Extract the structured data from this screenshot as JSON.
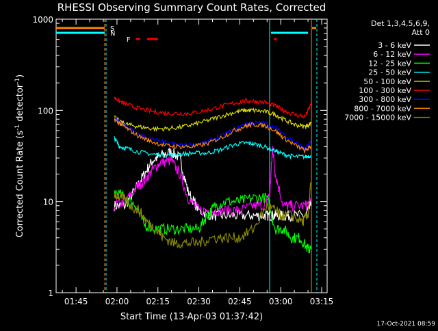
{
  "chart_data": {
    "type": "line",
    "title": "RHESSI Observing Summary Count Rates, Corrected",
    "xlabel": "Start Time (13-Apr-03 01:37:42)",
    "ylabel_main": "Corrected Count Rate (s",
    "ylabel_sup1": "-1",
    "ylabel_mid": " detector",
    "ylabel_sup2": "-1",
    "ylabel_end": ")",
    "yscale": "log",
    "ylim": [
      1,
      1000
    ],
    "xlim_minutes": [
      97.7,
      197.0
    ],
    "x_ticks": [
      {
        "label": "01:45",
        "minutes": 105
      },
      {
        "label": "02:00",
        "minutes": 120
      },
      {
        "label": "02:15",
        "minutes": 135
      },
      {
        "label": "02:30",
        "minutes": 150
      },
      {
        "label": "02:45",
        "minutes": 165
      },
      {
        "label": "03:00",
        "minutes": 180
      },
      {
        "label": "03:15",
        "minutes": 195
      }
    ],
    "y_ticks": [
      {
        "label": "1",
        "value": 1
      },
      {
        "label": "10",
        "value": 10
      },
      {
        "label": "100",
        "value": 100
      },
      {
        "label": "1000",
        "value": 1000
      }
    ],
    "legend_placement": "right",
    "legend_header": [
      "Det 1,3,4,5,6,9,",
      "Att 0"
    ],
    "series": [
      {
        "name": "3 - 6 keV",
        "color": "#ffffff",
        "x": [
          119,
          123,
          127,
          130,
          133,
          136,
          140,
          143,
          146,
          150,
          155,
          160,
          165,
          170,
          174,
          176,
          178,
          181,
          184,
          189,
          191
        ],
        "y": [
          9,
          9,
          14,
          20,
          28,
          32,
          35,
          30,
          13,
          8,
          7,
          7,
          7,
          7,
          7,
          7,
          7,
          7,
          7,
          7,
          9
        ]
      },
      {
        "name": "6 - 12 keV",
        "color": "#ff00ff",
        "x": [
          119,
          123,
          127,
          130,
          133,
          136,
          140,
          143,
          146,
          150,
          155,
          160,
          165,
          170,
          174,
          176,
          177,
          178,
          181,
          184,
          189,
          191
        ],
        "y": [
          9,
          10,
          14,
          17,
          22,
          27,
          28,
          20,
          11,
          8,
          8,
          8,
          8,
          9,
          9,
          12,
          40,
          20,
          9,
          9,
          9,
          10
        ]
      },
      {
        "name": "12 - 25 keV",
        "color": "#00ff00",
        "x": [
          119,
          123,
          127,
          130,
          135,
          140,
          145,
          150,
          153,
          156,
          160,
          165,
          170,
          175,
          178,
          181,
          184,
          187,
          190,
          191
        ],
        "y": [
          13,
          11,
          9,
          5.5,
          5,
          5,
          5,
          5,
          7,
          9,
          10,
          10,
          11,
          11,
          5,
          5,
          4,
          4,
          3,
          3
        ]
      },
      {
        "name": "25 - 50 keV",
        "color": "#00ffff",
        "x": [
          119,
          121,
          124,
          128,
          133,
          138,
          143,
          148,
          153,
          158,
          163,
          167,
          170,
          174,
          178,
          181,
          185,
          189,
          191
        ],
        "y": [
          50,
          40,
          38,
          35,
          33,
          32,
          33,
          34,
          34,
          37,
          42,
          44,
          43,
          40,
          36,
          33,
          31,
          31,
          32
        ]
      },
      {
        "name": "50 - 100 keV",
        "color": "#dddd00",
        "x": [
          119,
          121,
          124,
          128,
          133,
          138,
          143,
          148,
          153,
          158,
          163,
          167,
          170,
          174,
          178,
          181,
          185,
          189,
          191
        ],
        "y": [
          85,
          75,
          70,
          66,
          63,
          63,
          65,
          70,
          77,
          86,
          95,
          100,
          100,
          97,
          90,
          80,
          70,
          66,
          72
        ]
      },
      {
        "name": "100 - 300 keV",
        "color": "#ff0000",
        "x": [
          119,
          121,
          124,
          128,
          133,
          138,
          143,
          148,
          153,
          158,
          163,
          167,
          170,
          174,
          178,
          181,
          185,
          189,
          191
        ],
        "y": [
          140,
          125,
          115,
          105,
          97,
          93,
          92,
          94,
          100,
          110,
          120,
          126,
          126,
          122,
          112,
          100,
          90,
          85,
          115
        ]
      },
      {
        "name": "300 - 800 keV",
        "color": "#0000ff",
        "x": [
          119,
          121,
          124,
          128,
          133,
          138,
          143,
          148,
          153,
          158,
          163,
          167,
          170,
          174,
          178,
          181,
          185,
          189,
          191
        ],
        "y": [
          80,
          75,
          65,
          55,
          48,
          44,
          42,
          42,
          45,
          52,
          62,
          70,
          73,
          72,
          65,
          55,
          45,
          38,
          44
        ]
      },
      {
        "name": "800 - 7000 keV",
        "color": "#ff8800",
        "x": [
          119,
          121,
          124,
          128,
          133,
          138,
          143,
          148,
          153,
          158,
          163,
          167,
          170,
          174,
          178,
          181,
          185,
          189,
          191
        ],
        "y": [
          80,
          72,
          62,
          52,
          45,
          41,
          40,
          40,
          43,
          50,
          60,
          67,
          70,
          68,
          60,
          50,
          42,
          36,
          40
        ]
      },
      {
        "name": "7000 - 15000 keV",
        "color": "#888800",
        "x": [
          119,
          122,
          125,
          128,
          131,
          134,
          137,
          141,
          145,
          150,
          155,
          160,
          165,
          170,
          175,
          178,
          180,
          184,
          188,
          190,
          191
        ],
        "y": [
          12,
          11,
          9,
          8,
          6,
          5,
          4,
          3.5,
          3.5,
          3.5,
          4,
          4,
          4,
          5,
          9,
          8,
          7,
          7,
          6,
          7,
          16
        ]
      }
    ],
    "markers": [
      {
        "label": "S",
        "color": "#ff8800",
        "x_start": 97.7,
        "x_end": 116.5
      },
      {
        "label": "N",
        "color": "#00ffff",
        "x_start": 97.7,
        "x_end": 116.5
      },
      {
        "label": "F",
        "color": "#ff0000",
        "segments": [
          [
            127,
            128.5
          ],
          [
            131,
            135
          ],
          [
            177.5,
            178.5
          ]
        ]
      }
    ]
  },
  "footer": {
    "timestamp": "17-Oct-2021 08:59"
  }
}
